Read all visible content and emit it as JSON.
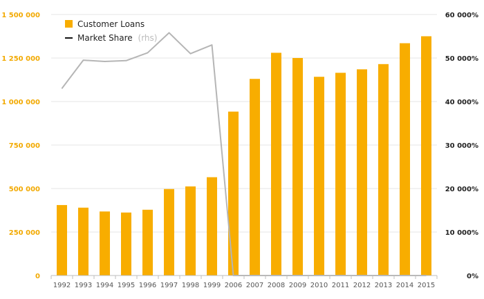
{
  "chart_data": {
    "type": "bar",
    "categories": [
      "1992",
      "1993",
      "1994",
      "1995",
      "1996",
      "1997",
      "1998",
      "1999",
      "2006",
      "2007",
      "2008",
      "2009",
      "2010",
      "2011",
      "2012",
      "2013",
      "2014",
      "2015"
    ],
    "series": [
      {
        "name": "Customer Loans",
        "type": "bar",
        "axis": "left",
        "color": "#f8ad00",
        "values": [
          405000,
          390000,
          368000,
          362000,
          378000,
          497000,
          512000,
          565000,
          942000,
          1130000,
          1280000,
          1250000,
          1142000,
          1165000,
          1185000,
          1215000,
          1335000,
          1375000
        ]
      },
      {
        "name": "Market Share",
        "name_suffix": "(rhs)",
        "type": "line",
        "axis": "right",
        "color": "#b5b5b5",
        "values": [
          43000,
          49500,
          49200,
          49400,
          51200,
          55800,
          51000,
          53000,
          0,
          0,
          0,
          0,
          0,
          0,
          0,
          0,
          0,
          0
        ]
      }
    ],
    "y_left": {
      "range": [
        0,
        1500000
      ],
      "ticks": [
        0,
        250000,
        500000,
        750000,
        1000000,
        1250000,
        1500000
      ],
      "tick_labels": [
        "0",
        "250 000",
        "500 000",
        "750 000",
        "1 000 000",
        "1 250 000",
        "1 500 000"
      ],
      "color": "#f2a900"
    },
    "y_right": {
      "range": [
        0,
        60000
      ],
      "ticks": [
        0,
        10000,
        20000,
        30000,
        40000,
        50000,
        60000
      ],
      "tick_labels": [
        "0%",
        "10 000%",
        "20 000%",
        "30 000%",
        "40 000%",
        "50 000%",
        "60 000%"
      ],
      "color": "#222222"
    },
    "grid": true,
    "legend_position": "top-left",
    "title": "",
    "xlabel": "",
    "ylabel": ""
  }
}
